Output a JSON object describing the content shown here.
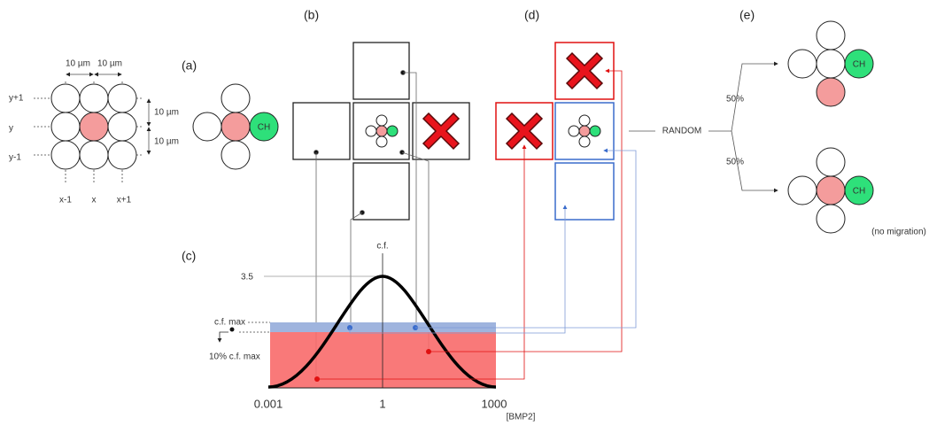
{
  "panel_grid": {
    "spacing_x": [
      "10 µm",
      "10 µm"
    ],
    "rows": [
      "y+1",
      "y",
      "y-1"
    ],
    "spacing_y": [
      "10 µm",
      "10 µm"
    ],
    "cols": [
      "x-1",
      "x",
      "x+1"
    ]
  },
  "panel_a": {
    "label": "(a)",
    "cell": "CH"
  },
  "panel_b": {
    "label": "(b)"
  },
  "panel_c": {
    "label": "(c)",
    "peak_label": "c.f.",
    "peak_value": "3.5",
    "max_label": "c.f. max",
    "threshold_label": "10% c.f. max",
    "x_ticks": [
      "0.001",
      "1",
      "1000"
    ],
    "x_label": "[BMP2]"
  },
  "panel_d": {
    "label": "(d)"
  },
  "panel_e": {
    "label": "(e)",
    "decision": "RANDOM",
    "branches": [
      {
        "probability": "50%",
        "cell": "CH"
      },
      {
        "probability": "50%",
        "cell": "CH",
        "note": "(no migration)"
      }
    ]
  }
}
